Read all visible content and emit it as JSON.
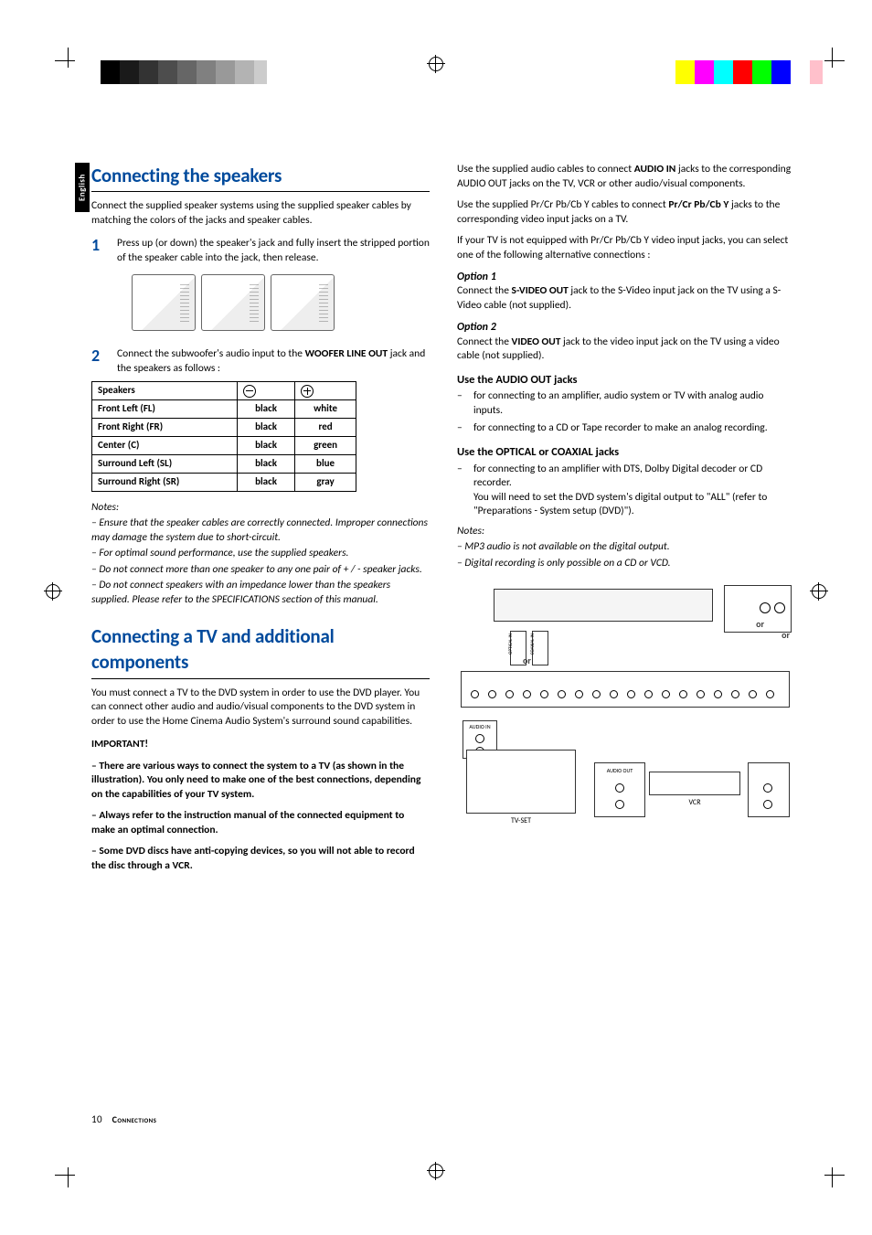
{
  "registration_bars": {
    "left_colors": [
      "#000000",
      "#1a1a1a",
      "#333333",
      "#4d4d4d",
      "#666666",
      "#808080",
      "#999999",
      "#b3b3b3",
      "#cccccc",
      "#ffffff"
    ],
    "right_colors": [
      "#ffff00",
      "#ff00ff",
      "#00ffff",
      "#ff0000",
      "#00ff00",
      "#0000ff",
      "#ffffff",
      "#ffc0cb",
      "#ffffff"
    ]
  },
  "language_tab": "English",
  "left": {
    "h1": "Connecting the speakers",
    "intro": "Connect the supplied speaker systems using the supplied speaker cables by matching the colors of the jacks and speaker cables.",
    "step1_num": "1",
    "step1": "Press up (or down) the speaker's jack and fully insert the stripped portion of the speaker cable into the jack, then release.",
    "step2_num": "2",
    "step2_a": "Connect the subwoofer's audio input to the ",
    "step2_b": "WOOFER LINE OUT",
    "step2_c": " jack and the speakers as follows :",
    "table": {
      "header_speakers": "Speakers",
      "rows": [
        {
          "name": "Front Left (FL)",
          "minus": "black",
          "plus": "white"
        },
        {
          "name": "Front Right (FR)",
          "minus": "black",
          "plus": "red"
        },
        {
          "name": "Center (C)",
          "minus": "black",
          "plus": "green"
        },
        {
          "name": "Surround Left (SL)",
          "minus": "black",
          "plus": "blue"
        },
        {
          "name": "Surround Right (SR)",
          "minus": "black",
          "plus": "gray"
        }
      ]
    },
    "notes_heading": "Notes:",
    "note1": "– Ensure that the speaker cables are correctly connected. Improper connections may damage the system due to short-circuit.",
    "note2": "– For optimal sound performance, use the supplied speakers.",
    "note3": "– Do not connect more than one speaker to any one pair of + / - speaker jacks.",
    "note4": "– Do not connect speakers with an impedance lower than the speakers supplied.  Please refer to the SPECIFICATIONS section of this manual.",
    "h1b": "Connecting a TV and additional components",
    "tv_intro": "You must connect a TV to the DVD system in order to use the DVD player.  You can connect other audio and audio/visual components to the DVD system in order to use the Home Cinema Audio System's surround sound capabilities.",
    "important": "IMPORTANT!",
    "imp1": "– There are various ways to connect the system to a TV (as shown in the illustration). You only need to make one of the best connections, depending on the capabilities of your TV system.",
    "imp2": "– Always refer to the instruction manual of the connected equipment to make an optimal connection.",
    "imp3": "– Some DVD discs have anti-copying devices, so you will not able to record the disc through a VCR."
  },
  "right": {
    "p1a": "Use the supplied audio cables to connect ",
    "p1b": "AUDIO IN",
    "p1c": " jacks to the corresponding AUDIO OUT jacks on the TV, VCR or other audio/visual components.",
    "p2a": "Use the supplied Pr/Cr Pb/Cb Y cables to connect ",
    "p2b": "Pr/Cr Pb/Cb Y",
    "p2c": " jacks to the corresponding video input jacks on a TV.",
    "p3": "If your TV is not equipped with Pr/Cr Pb/Cb Y video input jacks, you can select one of the following alternative connections :",
    "opt1_h": "Option 1",
    "opt1a": "Connect the ",
    "opt1b": "S-VIDEO OUT",
    "opt1c": " jack to the S-Video input jack on the TV using a S-Video cable (not supplied).",
    "opt2_h": "Option 2",
    "opt2a": "Connect the ",
    "opt2b": "VIDEO OUT",
    "opt2c": " jack to the video input jack on the TV using a video cable (not supplied).",
    "audio_h": "Use the AUDIO OUT jacks",
    "audio_b1": "for connecting to an amplifier, audio system or TV with analog audio inputs.",
    "audio_b2": "for connecting to a CD or Tape recorder to make an analog recording.",
    "digi_h": "Use the OPTICAL or COAXIAL jacks",
    "digi_b1": "for connecting to an amplifier with DTS, Dolby Digital decoder or CD recorder.",
    "digi_b1b": "You will need to set the DVD system's digital output to \"ALL\" (refer to \"Preparations - System setup (DVD)\").",
    "notes_heading": "Notes:",
    "rnote1": "– MP3 audio is not available on the digital output.",
    "rnote2": "– Digital recording is only possible on a CD or VCD.",
    "or": "or"
  },
  "footer": {
    "page": "10",
    "section": "Connections"
  },
  "colors": {
    "heading_blue": "#004a9c"
  }
}
